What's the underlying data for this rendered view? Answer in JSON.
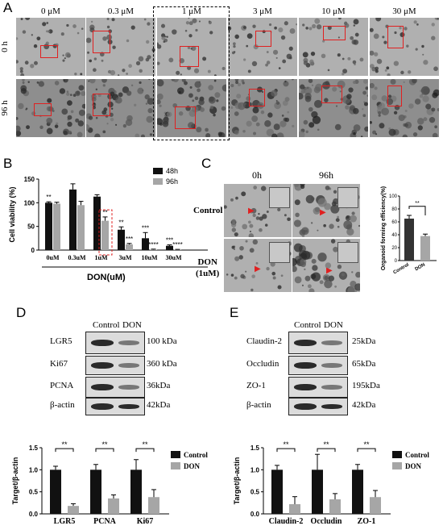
{
  "panelA": {
    "letter": "A",
    "concs": [
      "0 μM",
      "0.3 μM",
      "1 μM",
      "3 μM",
      "10 μM",
      "30 μM"
    ],
    "rows": [
      "0 h",
      "96 h"
    ]
  },
  "panelB": {
    "letter": "B",
    "legend": [
      "48h",
      "96h"
    ],
    "xgroup_label": "DON(uM)",
    "sig_top": [
      "**",
      "",
      "",
      "**",
      "***",
      "***"
    ],
    "sig_bottom": [
      "",
      "",
      "**",
      "***",
      "****",
      "****"
    ]
  },
  "panelC": {
    "letter": "C",
    "cols": [
      "0h",
      "96h"
    ],
    "rows": [
      "Control",
      "DON\n(1uM)"
    ],
    "sig": "**"
  },
  "panelD": {
    "letter": "D",
    "header": [
      "Control",
      "DON"
    ],
    "proteins": [
      "LGR5",
      "Ki67",
      "PCNA",
      "β-actin"
    ],
    "kda": [
      "100 kDa",
      "360 kDa",
      "36kDa",
      "42kDa"
    ],
    "sig": [
      "**",
      "**",
      "**"
    ]
  },
  "panelE": {
    "letter": "E",
    "header": [
      "Control",
      "DON"
    ],
    "proteins": [
      "Claudin-2",
      "Occludin",
      "ZO-1",
      "β-actin"
    ],
    "kda": [
      "25kDa",
      "65kDa",
      "195kDa",
      "42kDa"
    ],
    "sig": [
      "**",
      "**",
      "**"
    ]
  },
  "chart_data": [
    {
      "type": "bar",
      "panel": "B",
      "categories": [
        "0uM",
        "0.3uM",
        "1uM",
        "3uM",
        "10uM",
        "30uM"
      ],
      "series": [
        {
          "name": "48h",
          "values": [
            100,
            128,
            113,
            43,
            25,
            9
          ],
          "errors": [
            2,
            12,
            4,
            6,
            12,
            2
          ],
          "color": "#111111"
        },
        {
          "name": "96h",
          "values": [
            98,
            95,
            62,
            12,
            1,
            1
          ],
          "errors": [
            3,
            8,
            8,
            2,
            1,
            0.5
          ],
          "color": "#a6a6a6"
        }
      ],
      "xlabel": "DON(uM)",
      "ylabel": "Cell viability (%)",
      "ylim": [
        0,
        150
      ],
      "yticks": [
        0,
        50,
        100,
        150
      ],
      "legend": "top-right"
    },
    {
      "type": "bar",
      "panel": "C",
      "categories": [
        "Control",
        "DON"
      ],
      "values": [
        65,
        38
      ],
      "errors": [
        5,
        3
      ],
      "colors": [
        "#333333",
        "#a6a6a6"
      ],
      "ylabel": "Organoid forming efficiency(%)",
      "ylim": [
        0,
        100
      ],
      "yticks": [
        0,
        20,
        40,
        60,
        80,
        100
      ]
    },
    {
      "type": "bar",
      "panel": "D",
      "categories": [
        "LGR5",
        "PCNA",
        "Ki67"
      ],
      "series": [
        {
          "name": "Control",
          "values": [
            1.0,
            1.0,
            1.0
          ],
          "errors": [
            0.08,
            0.12,
            0.23
          ],
          "color": "#111111"
        },
        {
          "name": "DON",
          "values": [
            0.18,
            0.35,
            0.38
          ],
          "errors": [
            0.05,
            0.08,
            0.17
          ],
          "color": "#a6a6a6"
        }
      ],
      "ylabel": "Target/β-actin",
      "ylim": [
        0,
        1.5
      ],
      "yticks": [
        0.0,
        0.5,
        1.0,
        1.5
      ],
      "legend": "right"
    },
    {
      "type": "bar",
      "panel": "E",
      "categories": [
        "Claudin-2",
        "Occludin",
        "ZO-1"
      ],
      "series": [
        {
          "name": "Control",
          "values": [
            1.0,
            1.0,
            1.0
          ],
          "errors": [
            0.1,
            0.35,
            0.12
          ],
          "color": "#111111"
        },
        {
          "name": "DON",
          "values": [
            0.22,
            0.33,
            0.38
          ],
          "errors": [
            0.17,
            0.13,
            0.15
          ],
          "color": "#a6a6a6"
        }
      ],
      "ylabel": "Target/β-actin",
      "ylim": [
        0,
        1.5
      ],
      "yticks": [
        0.0,
        0.5,
        1.0,
        1.5
      ],
      "legend": "right"
    }
  ]
}
